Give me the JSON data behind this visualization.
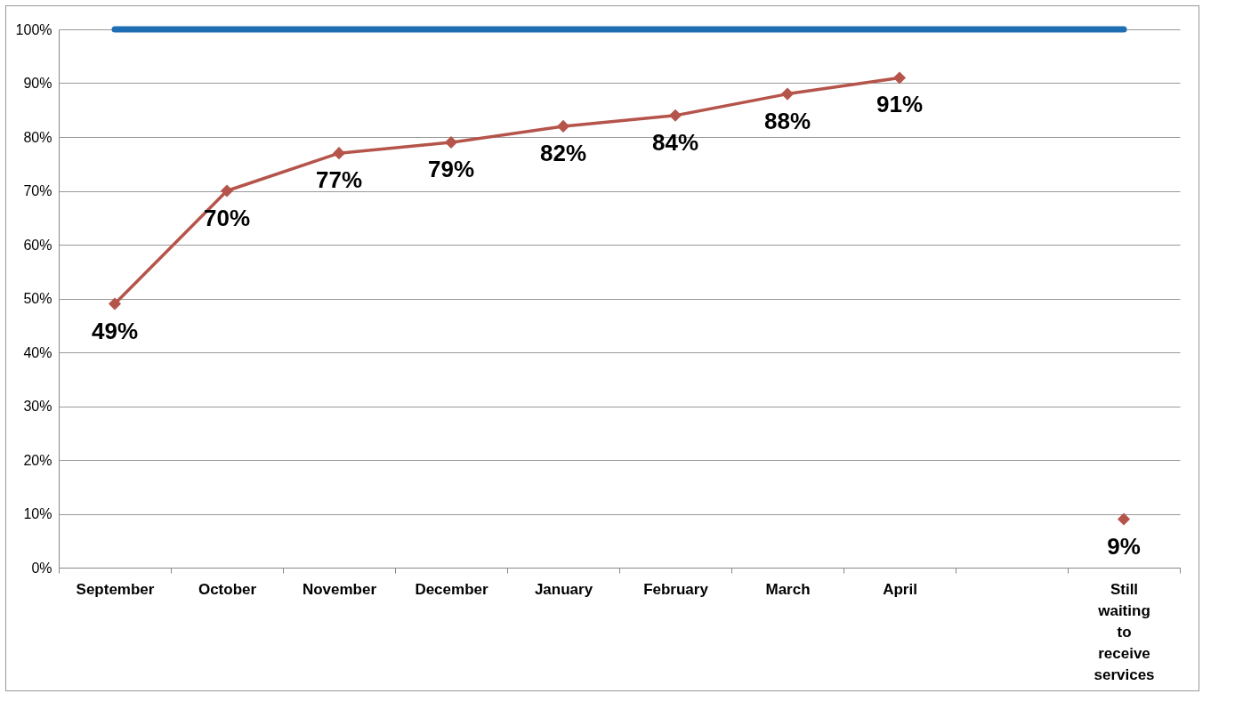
{
  "chart_data": {
    "type": "line",
    "categories": [
      "September",
      "October",
      "November",
      "December",
      "January",
      "February",
      "March",
      "April",
      null,
      "Still waiting to receive services"
    ],
    "series": [
      {
        "color": "#1f6db3",
        "values": [
          100,
          100,
          100,
          100,
          100,
          100,
          100,
          100,
          100,
          100
        ]
      },
      {
        "color": "#b5544a",
        "marker": "diamond",
        "values": [
          49,
          70,
          77,
          79,
          82,
          84,
          88,
          91,
          null,
          9
        ],
        "value_labels": [
          "49%",
          "70%",
          "77%",
          "79%",
          "82%",
          "84%",
          "88%",
          "91%",
          null,
          "9%"
        ]
      }
    ],
    "ylim": [
      0,
      100
    ],
    "yticks": [
      {
        "value": 0,
        "label": "0%"
      },
      {
        "value": 10,
        "label": "10%"
      },
      {
        "value": 20,
        "label": "20%"
      },
      {
        "value": 30,
        "label": "30%"
      },
      {
        "value": 40,
        "label": "40%"
      },
      {
        "value": 50,
        "label": "50%"
      },
      {
        "value": 60,
        "label": "60%"
      },
      {
        "value": 70,
        "label": "70%"
      },
      {
        "value": 80,
        "label": "80%"
      },
      {
        "value": 90,
        "label": "90%"
      },
      {
        "value": 100,
        "label": "100%"
      }
    ],
    "grid": "y"
  }
}
